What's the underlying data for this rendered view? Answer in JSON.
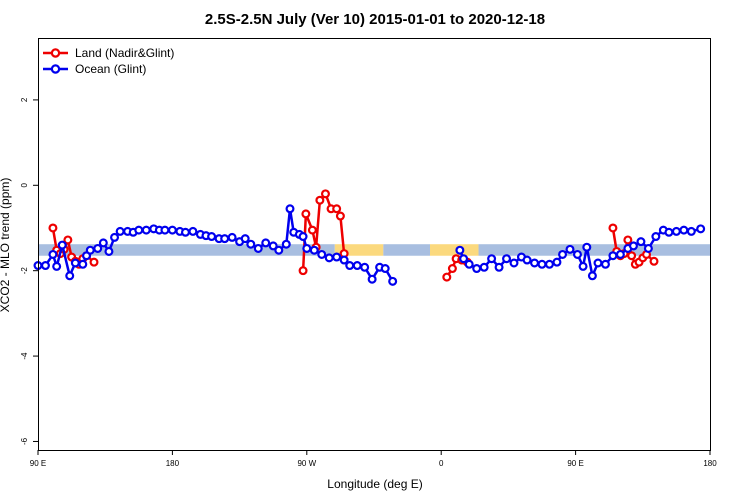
{
  "chart_data": {
    "type": "line",
    "title": "2.5S-2.5N July (Ver 10)   2015-01-01 to 2020-12-18",
    "xlabel": "Longitude (deg E)",
    "ylabel": "XCO2 - MLO trend (ppm)",
    "xlim": [
      90,
      450
    ],
    "ylim": [
      -6.2,
      3.45
    ],
    "x_ticks": [
      {
        "value": 90,
        "label": "90 E"
      },
      {
        "value": 162,
        "label": "180"
      },
      {
        "value": 234,
        "label": "90 W"
      },
      {
        "value": 306,
        "label": "0"
      },
      {
        "value": 378,
        "label": "90 E"
      },
      {
        "value": 450,
        "label": "180"
      }
    ],
    "y_ticks": [
      {
        "value": 2,
        "label": "2"
      },
      {
        "value": 0,
        "label": "0"
      },
      {
        "value": -2,
        "label": "-2"
      },
      {
        "value": -4,
        "label": "-4"
      },
      {
        "value": -6,
        "label": "-6"
      }
    ],
    "legend_position": "top-left",
    "background_band": {
      "y_range": [
        -1.65,
        -1.38
      ],
      "segments": [
        {
          "x": [
            90,
            249
          ],
          "color": "#a8bee0"
        },
        {
          "x": [
            249,
            275
          ],
          "color": "#fbd97e"
        },
        {
          "x": [
            275,
            300
          ],
          "color": "#a8bee0"
        },
        {
          "x": [
            300,
            326
          ],
          "color": "#fbd97e"
        },
        {
          "x": [
            326,
            450
          ],
          "color": "#a8bee0"
        }
      ]
    },
    "series": [
      {
        "name": "Land (Nadir&Glint)",
        "color": "#ee0000",
        "segments": [
          [
            [
              98,
              -1.0
            ],
            [
              100,
              -1.52
            ],
            [
              102,
              -1.6
            ],
            [
              104,
              -1.5
            ],
            [
              106,
              -1.28
            ],
            [
              108,
              -1.68
            ],
            [
              110,
              -1.78
            ],
            [
              112,
              -1.85
            ],
            [
              114,
              -1.72
            ],
            [
              116,
              -1.65
            ],
            [
              120,
              -1.8
            ]
          ],
          [
            [
              232,
              -2.0
            ],
            [
              233.5,
              -0.67
            ],
            [
              237,
              -1.05
            ],
            [
              239,
              -1.45
            ],
            [
              241,
              -0.35
            ],
            [
              244,
              -0.2
            ],
            [
              247,
              -0.55
            ],
            [
              250,
              -0.55
            ],
            [
              252,
              -0.72
            ],
            [
              254,
              -1.6
            ]
          ],
          [
            [
              309,
              -2.15
            ],
            [
              312,
              -1.95
            ],
            [
              314,
              -1.72
            ],
            [
              317,
              -1.75
            ],
            [
              320,
              -1.8
            ]
          ],
          [
            [
              398,
              -1.0
            ],
            [
              400,
              -1.55
            ],
            [
              402,
              -1.65
            ],
            [
              404,
              -1.6
            ],
            [
              406,
              -1.28
            ],
            [
              408,
              -1.65
            ],
            [
              410,
              -1.85
            ],
            [
              412,
              -1.8
            ],
            [
              414,
              -1.7
            ],
            [
              416,
              -1.62
            ],
            [
              420,
              -1.78
            ]
          ]
        ]
      },
      {
        "name": "Ocean (Glint)",
        "color": "#0000ee",
        "segments": [
          [
            [
              90,
              -1.88
            ],
            [
              94,
              -1.88
            ],
            [
              98,
              -1.62
            ],
            [
              100,
              -1.9
            ],
            [
              103,
              -1.4
            ],
            [
              107,
              -2.12
            ],
            [
              110,
              -1.82
            ],
            [
              114,
              -1.85
            ],
            [
              116,
              -1.65
            ],
            [
              118,
              -1.52
            ],
            [
              122,
              -1.48
            ],
            [
              125,
              -1.35
            ],
            [
              128,
              -1.55
            ],
            [
              131,
              -1.22
            ],
            [
              134,
              -1.08
            ],
            [
              138,
              -1.08
            ],
            [
              141,
              -1.1
            ],
            [
              144,
              -1.05
            ],
            [
              148,
              -1.05
            ],
            [
              152,
              -1.02
            ],
            [
              155,
              -1.05
            ],
            [
              158,
              -1.05
            ],
            [
              162,
              -1.05
            ],
            [
              166,
              -1.08
            ],
            [
              169,
              -1.1
            ],
            [
              173,
              -1.08
            ],
            [
              177,
              -1.15
            ],
            [
              180,
              -1.18
            ],
            [
              183,
              -1.2
            ],
            [
              187,
              -1.25
            ],
            [
              190,
              -1.25
            ],
            [
              194,
              -1.22
            ],
            [
              198,
              -1.32
            ],
            [
              201,
              -1.25
            ],
            [
              204,
              -1.38
            ],
            [
              208,
              -1.48
            ],
            [
              212,
              -1.35
            ],
            [
              216,
              -1.42
            ],
            [
              219,
              -1.52
            ],
            [
              223,
              -1.38
            ],
            [
              225,
              -0.55
            ],
            [
              227,
              -1.1
            ],
            [
              230,
              -1.15
            ],
            [
              232,
              -1.2
            ],
            [
              234,
              -1.48
            ],
            [
              238,
              -1.52
            ],
            [
              242,
              -1.62
            ],
            [
              246,
              -1.7
            ],
            [
              250,
              -1.68
            ],
            [
              254,
              -1.75
            ],
            [
              257,
              -1.88
            ],
            [
              261,
              -1.88
            ],
            [
              265,
              -1.92
            ],
            [
              269,
              -2.2
            ],
            [
              273,
              -1.92
            ],
            [
              276,
              -1.95
            ],
            [
              280,
              -2.25
            ]
          ],
          [
            [
              316,
              -1.52
            ],
            [
              318,
              -1.72
            ],
            [
              321,
              -1.85
            ],
            [
              325,
              -1.95
            ],
            [
              329,
              -1.92
            ],
            [
              333,
              -1.72
            ],
            [
              337,
              -1.92
            ],
            [
              341,
              -1.72
            ],
            [
              345,
              -1.82
            ],
            [
              349,
              -1.68
            ],
            [
              352,
              -1.75
            ],
            [
              356,
              -1.82
            ],
            [
              360,
              -1.85
            ],
            [
              364,
              -1.85
            ],
            [
              368,
              -1.8
            ],
            [
              371,
              -1.62
            ],
            [
              375,
              -1.5
            ],
            [
              379,
              -1.62
            ],
            [
              382,
              -1.9
            ],
            [
              384,
              -1.45
            ],
            [
              387,
              -2.12
            ],
            [
              390,
              -1.82
            ],
            [
              394,
              -1.85
            ],
            [
              398,
              -1.65
            ],
            [
              402,
              -1.62
            ],
            [
              406,
              -1.48
            ],
            [
              409,
              -1.42
            ],
            [
              413,
              -1.32
            ],
            [
              417,
              -1.48
            ],
            [
              421,
              -1.2
            ],
            [
              425,
              -1.05
            ],
            [
              428,
              -1.1
            ],
            [
              432,
              -1.08
            ],
            [
              436,
              -1.05
            ],
            [
              440,
              -1.08
            ],
            [
              445,
              -1.02
            ]
          ]
        ]
      }
    ]
  }
}
